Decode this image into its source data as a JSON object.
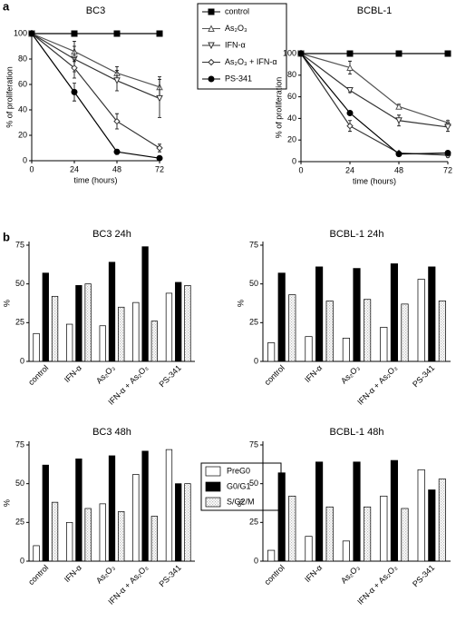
{
  "panel_labels": [
    "a",
    "b"
  ],
  "chart_data": [
    {
      "type": "line",
      "title": "BC3",
      "x_label": "time (hours)",
      "y_label": "% of proliferation",
      "x": [
        0,
        24,
        48,
        72
      ],
      "xlim": [
        0,
        72
      ],
      "xticks": [
        0,
        24,
        48,
        72
      ],
      "ylim": [
        0,
        100
      ],
      "yticks": [
        0,
        20,
        40,
        60,
        80,
        100
      ],
      "series": [
        {
          "name": "control",
          "color": "#000000",
          "marker": "square",
          "filled": true,
          "values": [
            100,
            100,
            100,
            100
          ],
          "errors": [
            0,
            0,
            0,
            0
          ]
        },
        {
          "name": "As₂O₃",
          "color": "#555555",
          "marker": "triangle",
          "filled": false,
          "values": [
            100,
            86,
            69,
            58
          ],
          "errors": [
            0,
            8,
            5,
            8
          ]
        },
        {
          "name": "IFN-α",
          "color": "#333333",
          "marker": "triangle-down",
          "filled": false,
          "values": [
            100,
            80,
            63,
            49
          ],
          "errors": [
            0,
            10,
            8,
            15
          ]
        },
        {
          "name": "As₂O₃ + IFN-α",
          "color": "#333333",
          "marker": "diamond",
          "filled": false,
          "values": [
            100,
            73,
            31,
            10
          ],
          "errors": [
            0,
            8,
            6,
            3
          ]
        },
        {
          "name": "PS-341",
          "color": "#000000",
          "marker": "circle",
          "filled": true,
          "values": [
            100,
            54,
            7,
            2
          ],
          "errors": [
            0,
            7,
            2,
            1
          ]
        }
      ]
    },
    {
      "type": "line",
      "title": "BCBL-1",
      "x_label": "time (hours)",
      "y_label": "% of proliferation",
      "x": [
        0,
        24,
        48,
        72
      ],
      "xlim": [
        0,
        72
      ],
      "xticks": [
        0,
        24,
        48,
        72
      ],
      "ylim": [
        0,
        100
      ],
      "yticks": [
        0,
        20,
        40,
        60,
        80,
        100
      ],
      "series": [
        {
          "color": "#000000",
          "marker": "square",
          "filled": true,
          "values": [
            100,
            100,
            100,
            100
          ],
          "errors": [
            0,
            0,
            0,
            0
          ]
        },
        {
          "color": "#555555",
          "marker": "triangle",
          "filled": false,
          "values": [
            100,
            87,
            51,
            36
          ],
          "errors": [
            0,
            6,
            2,
            2
          ]
        },
        {
          "color": "#333333",
          "marker": "triangle-down",
          "filled": false,
          "values": [
            100,
            66,
            38,
            32
          ],
          "errors": [
            0,
            2,
            5,
            4
          ]
        },
        {
          "color": "#333333",
          "marker": "diamond",
          "filled": false,
          "values": [
            100,
            33,
            8,
            6
          ],
          "errors": [
            0,
            5,
            1,
            2
          ]
        },
        {
          "color": "#000000",
          "marker": "circle",
          "filled": true,
          "values": [
            100,
            45,
            7,
            8
          ],
          "errors": [
            0,
            2,
            1,
            2
          ]
        }
      ]
    },
    {
      "type": "bar",
      "title": "BC3 24h",
      "y_label": "%",
      "categories": [
        "control",
        "IFN-α",
        "As₂O₃",
        "IFN-α + As₂O₃",
        "PS-341"
      ],
      "ylim": [
        0,
        75
      ],
      "yticks": [
        0,
        25,
        50,
        75
      ],
      "series": [
        {
          "name": "PreG0",
          "color": "#ffffff",
          "values": [
            18,
            24,
            23,
            38,
            44
          ]
        },
        {
          "name": "G0/G1",
          "color": "#000000",
          "values": [
            57,
            49,
            64,
            74,
            51
          ]
        },
        {
          "name": "S/G2/M",
          "color": "#bbbbbb",
          "hatch": "dots",
          "values": [
            42,
            50,
            35,
            26,
            49
          ]
        }
      ]
    },
    {
      "type": "bar",
      "title": "BCBL-1 24h",
      "y_label": "%",
      "categories": [
        "control",
        "IFN-α",
        "As₂O₃",
        "IFN-α + As₂O₃",
        "PS-341"
      ],
      "ylim": [
        0,
        75
      ],
      "yticks": [
        0,
        25,
        50,
        75
      ],
      "series": [
        {
          "color": "#ffffff",
          "values": [
            12,
            16,
            15,
            22,
            53
          ]
        },
        {
          "color": "#000000",
          "values": [
            57,
            61,
            60,
            63,
            61
          ]
        },
        {
          "color": "#bbbbbb",
          "hatch": "dots",
          "values": [
            43,
            39,
            40,
            37,
            39
          ]
        }
      ]
    },
    {
      "type": "bar",
      "title": "BC3 48h",
      "y_label": "%",
      "categories": [
        "control",
        "IFN-α",
        "As₂O₃",
        "IFN-α + As₂O₃",
        "PS-341"
      ],
      "ylim": [
        0,
        75
      ],
      "yticks": [
        0,
        25,
        50,
        75
      ],
      "series": [
        {
          "color": "#ffffff",
          "values": [
            10,
            25,
            37,
            56,
            72
          ]
        },
        {
          "color": "#000000",
          "values": [
            62,
            66,
            68,
            71,
            50
          ]
        },
        {
          "color": "#bbbbbb",
          "hatch": "dots",
          "values": [
            38,
            34,
            32,
            29,
            50
          ]
        }
      ]
    },
    {
      "type": "bar",
      "title": "BCBL-1 48h",
      "y_label": "%",
      "categories": [
        "control",
        "IFN-α",
        "As₂O₃",
        "IFN-α + As₂O₃",
        "PS-341"
      ],
      "ylim": [
        0,
        75
      ],
      "yticks": [
        0,
        25,
        50,
        75
      ],
      "series": [
        {
          "color": "#ffffff",
          "values": [
            7,
            16,
            13,
            42,
            59
          ]
        },
        {
          "color": "#000000",
          "values": [
            57,
            64,
            64,
            65,
            46
          ]
        },
        {
          "color": "#bbbbbb",
          "hatch": "dots",
          "values": [
            42,
            35,
            35,
            34,
            53
          ]
        }
      ]
    }
  ]
}
